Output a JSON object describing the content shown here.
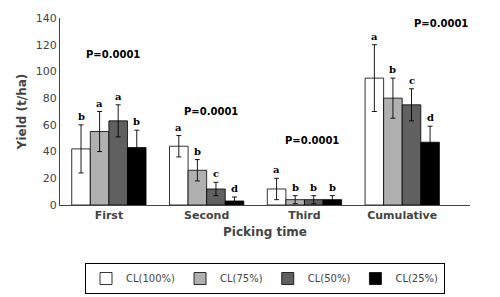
{
  "chart_data": {
    "type": "bar",
    "xlabel": "Picking time",
    "ylabel": "Yield (t/ha)",
    "categories": [
      "First",
      "Second",
      "Third",
      "Cumulative"
    ],
    "series": [
      {
        "name": "CL(100%)",
        "color": "#ffffff",
        "values": [
          42,
          44,
          12,
          95
        ],
        "errors": [
          18,
          8,
          8,
          25
        ],
        "letters": [
          "b",
          "a",
          "a",
          "a"
        ]
      },
      {
        "name": "CL(75%)",
        "color": "#b0b0b0",
        "values": [
          55,
          26,
          4,
          80
        ],
        "errors": [
          15,
          8,
          3,
          15
        ],
        "letters": [
          "a",
          "b",
          "b",
          "b"
        ]
      },
      {
        "name": "CL(50%)",
        "color": "#606060",
        "values": [
          63,
          12,
          4,
          75
        ],
        "errors": [
          12,
          5,
          3,
          12
        ],
        "letters": [
          "a",
          "c",
          "b",
          "c"
        ]
      },
      {
        "name": "CL(25%)",
        "color": "#000000",
        "values": [
          43,
          3,
          4,
          47
        ],
        "errors": [
          13,
          3,
          3,
          12
        ],
        "letters": [
          "b",
          "d",
          "b",
          "d"
        ]
      }
    ],
    "annotations": [
      {
        "text": "P=0.0001",
        "category": "First",
        "dx": -0.25,
        "y": 113
      },
      {
        "text": "P=0.0001",
        "category": "Second",
        "dx": -0.25,
        "y": 70
      },
      {
        "text": "P=0.0001",
        "category": "Third",
        "dx": -0.22,
        "y": 48
      },
      {
        "text": "P=0.0001",
        "category": "Cumulative",
        "dx": 0.1,
        "y": 136
      }
    ],
    "ylim": [
      0,
      140
    ],
    "yticks": [
      0,
      20,
      40,
      60,
      80,
      100,
      120,
      140
    ],
    "grid": false,
    "legend": "bottom"
  }
}
